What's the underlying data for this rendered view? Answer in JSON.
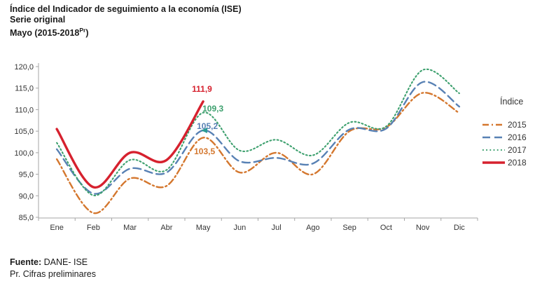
{
  "title": {
    "line1": "Índice del Indicador de seguimiento a la economía (ISE)",
    "line2": "Serie original",
    "line3_prefix": "Mayo (2015-2018",
    "line3_sup": "Pr",
    "line3_suffix": ")"
  },
  "legend": {
    "title": "Índice",
    "items": [
      {
        "label": "2015",
        "series": "2015"
      },
      {
        "label": "2016",
        "series": "2016"
      },
      {
        "label": "2017",
        "series": "2017"
      },
      {
        "label": "2018",
        "series": "2018"
      }
    ]
  },
  "annotations": [
    {
      "text": "111,9",
      "series": "2018",
      "month": "May",
      "value": 111.9
    },
    {
      "text": "109,3",
      "series": "2017",
      "month": "May",
      "value": 109.3
    },
    {
      "text": "105,2",
      "series": "2016",
      "month": "May",
      "value": 105.2,
      "arrow": "left-arrow"
    },
    {
      "text": "103,5",
      "series": "2015",
      "month": "May",
      "value": 103.5
    }
  ],
  "arrow_color": "#2c9b94",
  "footer": {
    "source_label": "Fuente:",
    "source_text": " DANE- ISE",
    "note": "Pr. Cifras preliminares"
  },
  "chart_data": {
    "type": "line",
    "title": "Índice del Indicador de seguimiento a la economía (ISE) - Serie original - Mayo (2015-2018 Pr)",
    "xlabel": "",
    "ylabel": "",
    "categories": [
      "Ene",
      "Feb",
      "Mar",
      "Abr",
      "May",
      "Jun",
      "Jul",
      "Ago",
      "Sep",
      "Oct",
      "Nov",
      "Dic"
    ],
    "ylim": [
      85.0,
      120.0
    ],
    "ytick_step": 5.0,
    "ytick_labels": [
      "85,0",
      "90,0",
      "95,0",
      "100,0",
      "105,0",
      "110,0",
      "115,0",
      "120,0"
    ],
    "grid": false,
    "legend_position": "right",
    "series": [
      {
        "name": "2015",
        "color": "#d4772e",
        "dash": "dashdot",
        "values": [
          98.5,
          86.0,
          94.0,
          92.3,
          103.5,
          95.4,
          100.0,
          95.0,
          105.0,
          105.9,
          113.9,
          109.2
        ]
      },
      {
        "name": "2016",
        "color": "#5881b4",
        "dash": "dashed",
        "values": [
          100.8,
          90.5,
          96.3,
          95.4,
          105.2,
          98.0,
          98.8,
          97.5,
          105.4,
          105.6,
          116.4,
          110.7
        ]
      },
      {
        "name": "2017",
        "color": "#3da06e",
        "dash": "dotted",
        "values": [
          102.3,
          90.1,
          98.3,
          96.0,
          109.3,
          100.5,
          103.0,
          99.4,
          107.0,
          106.1,
          119.2,
          113.8
        ]
      },
      {
        "name": "2018",
        "color": "#d6212e",
        "dash": "solid",
        "values": [
          105.5,
          92.0,
          100.0,
          98.3,
          111.9,
          null,
          null,
          null,
          null,
          null,
          null,
          null
        ]
      }
    ]
  }
}
